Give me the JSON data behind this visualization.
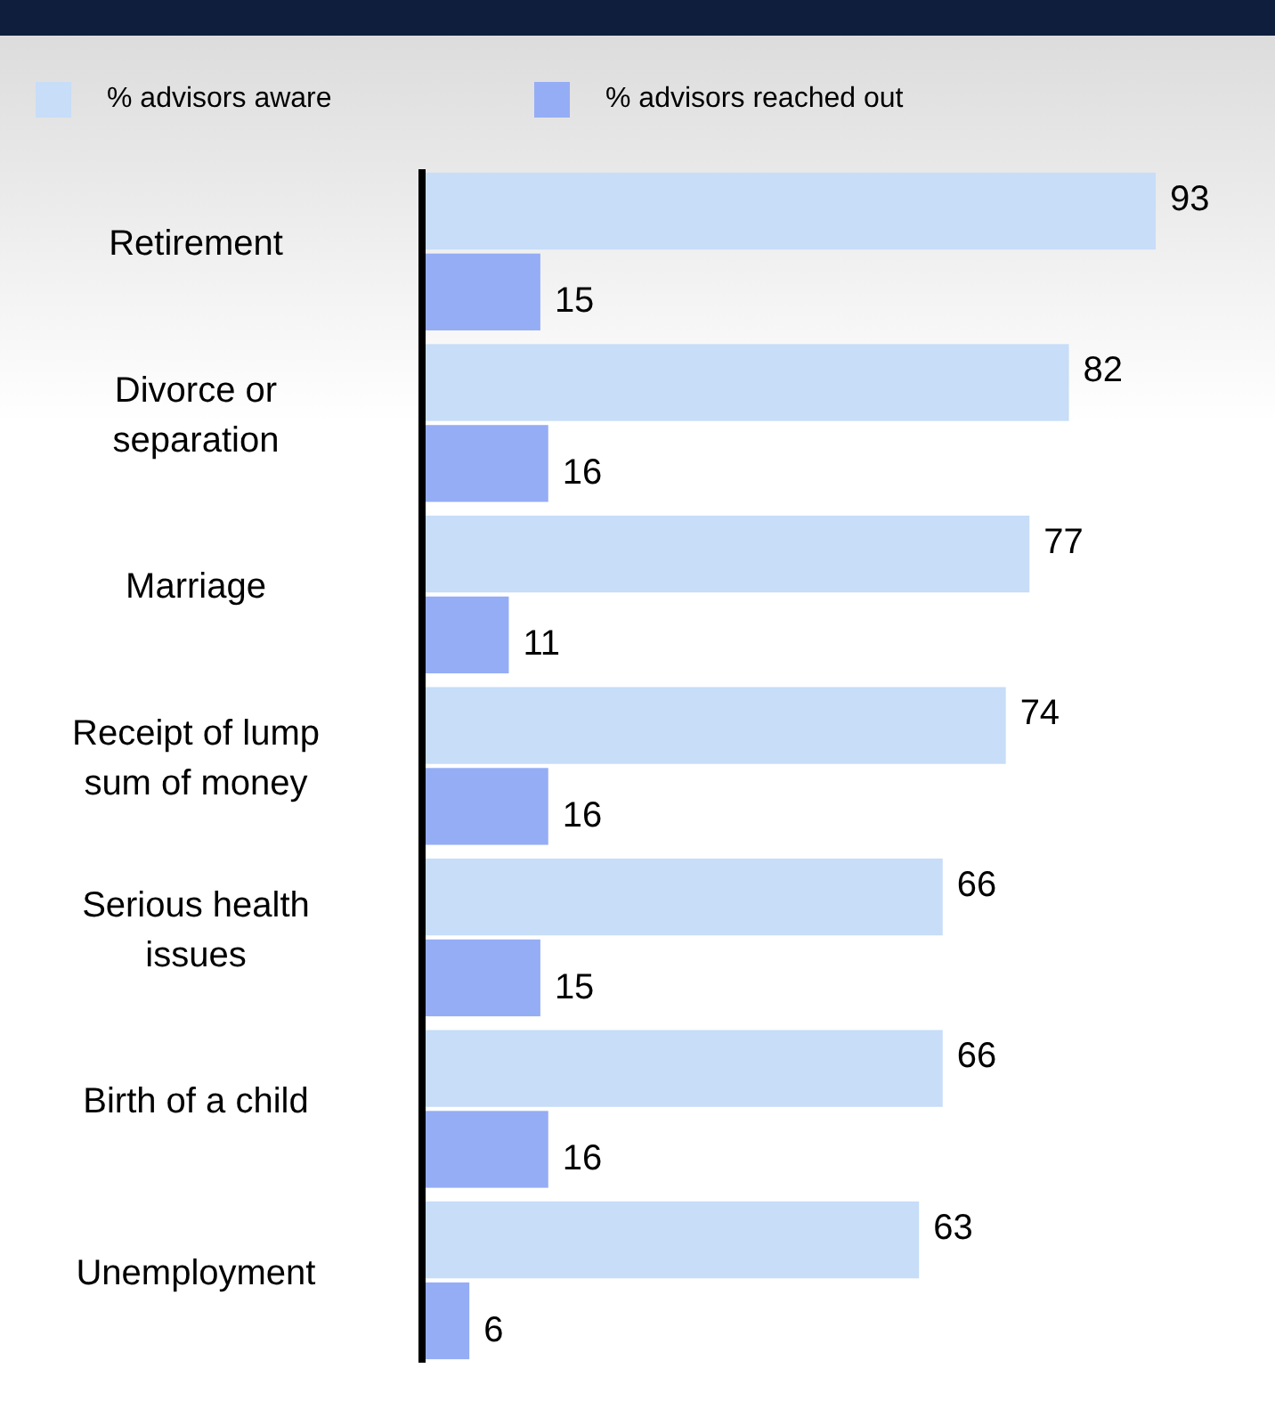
{
  "chart_data": {
    "type": "bar",
    "orientation": "horizontal",
    "categories": [
      "Retirement",
      "Divorce or separation",
      "Marriage",
      "Receipt of lump sum of money",
      "Serious health issues",
      "Birth of a child",
      "Unemployment"
    ],
    "series": [
      {
        "name": "% advisors aware",
        "color": "#c7ddf8",
        "values": [
          93,
          82,
          77,
          74,
          66,
          66,
          63
        ]
      },
      {
        "name": "% advisors reached out",
        "color": "#95adf5",
        "values": [
          15,
          16,
          11,
          16,
          15,
          16,
          6
        ]
      }
    ],
    "data_labels": true,
    "legend": "top left"
  }
}
